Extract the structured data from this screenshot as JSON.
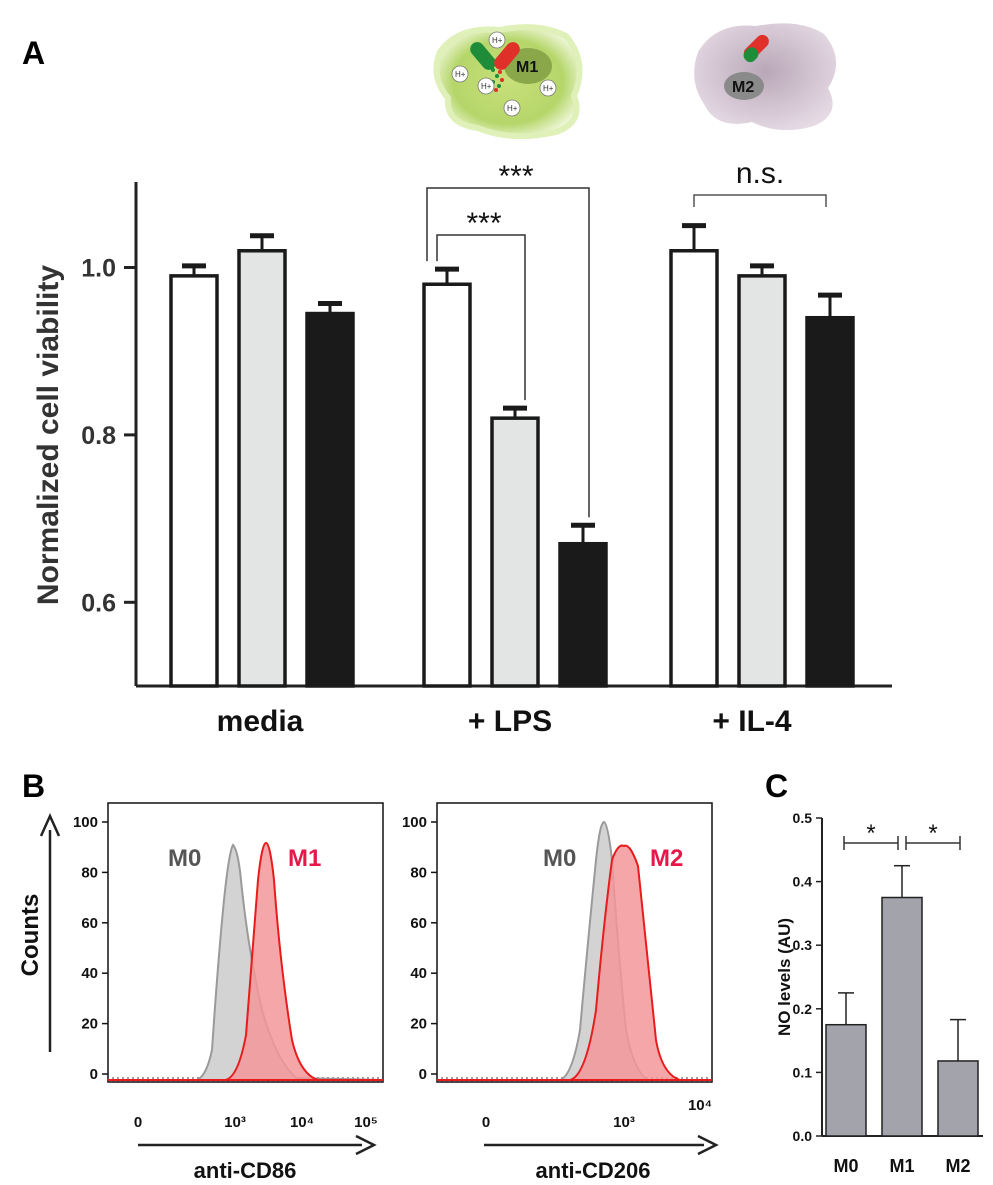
{
  "panel_a": {
    "panel_label": "A",
    "cell_icons": {
      "m1_label": "M1",
      "m2_label": "M2",
      "proton_label": "H+"
    },
    "chart_data": {
      "type": "bar",
      "ylabel": "Normalized cell viability",
      "categories": [
        "media",
        "+ LPS",
        "+ IL-4"
      ],
      "ylim": [
        0.5,
        1.1
      ],
      "yticks": [
        "0.6",
        "0.8",
        "1.0"
      ],
      "series": [
        {
          "fill": "#ffffff",
          "values": [
            0.99,
            0.98,
            1.02
          ],
          "errors": [
            0.012,
            0.018,
            0.03
          ]
        },
        {
          "fill": "#e3e5e5",
          "values": [
            1.02,
            0.82,
            0.99
          ],
          "errors": [
            0.018,
            0.012,
            0.012
          ]
        },
        {
          "fill": "#1a1a1a",
          "values": [
            0.945,
            0.67,
            0.94
          ],
          "errors": [
            0.012,
            0.022,
            0.027
          ]
        }
      ],
      "significance": [
        {
          "group": "+ LPS",
          "from": 0,
          "to": 1,
          "label": "***"
        },
        {
          "group": "+ LPS",
          "from": 0,
          "to": 2,
          "label": "***"
        },
        {
          "group": "+ IL-4",
          "from": 0,
          "to": 2,
          "label": "n.s."
        }
      ]
    }
  },
  "panel_b": {
    "panel_label": "B",
    "ylabel": "Counts",
    "left": {
      "xlabel": "anti-CD86",
      "legend": [
        {
          "label": "M0",
          "color": "#555555"
        },
        {
          "label": "M1",
          "color": "#e8174a"
        }
      ],
      "chart_data": {
        "type": "area",
        "x_scale": "log",
        "xticks": [
          "0",
          "10³",
          "10⁴",
          "10⁵"
        ],
        "yticks": [
          "0",
          "20",
          "40",
          "60",
          "80",
          "100"
        ],
        "ylim": [
          0,
          100
        ]
      }
    },
    "right": {
      "xlabel": "anti-CD206",
      "legend": [
        {
          "label": "M0",
          "color": "#555555"
        },
        {
          "label": "M2",
          "color": "#e8174a"
        }
      ],
      "chart_data": {
        "type": "area",
        "x_scale": "log",
        "xticks": [
          "0",
          "10³",
          "10⁴"
        ],
        "yticks": [
          "0",
          "20",
          "40",
          "60",
          "80",
          "100"
        ],
        "ylim": [
          0,
          100
        ]
      }
    }
  },
  "panel_c": {
    "panel_label": "C",
    "chart_data": {
      "type": "bar",
      "ylabel": "NO levels (AU)",
      "categories": [
        "M0",
        "M1",
        "M2"
      ],
      "values": [
        0.175,
        0.375,
        0.118
      ],
      "errors": [
        0.05,
        0.05,
        0.065
      ],
      "ylim": [
        0,
        0.5
      ],
      "yticks": [
        "0.0",
        "0.1",
        "0.2",
        "0.3",
        "0.4",
        "0.5"
      ],
      "bar_color": "#a3a3ab",
      "significance": [
        {
          "from": 0,
          "to": 1,
          "label": "*"
        },
        {
          "from": 1,
          "to": 2,
          "label": "*"
        }
      ]
    }
  }
}
